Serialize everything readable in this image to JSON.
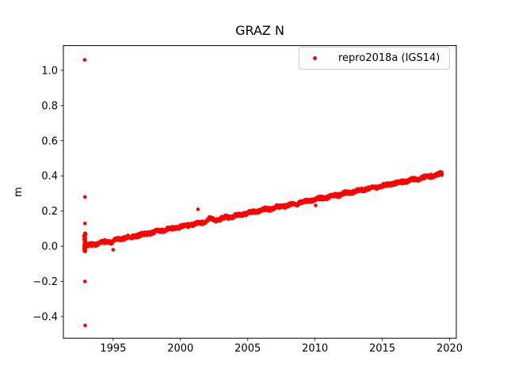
{
  "figure": {
    "background": "#ffffff"
  },
  "chart_data": {
    "type": "scatter",
    "title": "GRAZ N",
    "xlabel": "",
    "ylabel": "m",
    "grid": false,
    "legend": {
      "position": "upper right",
      "entries": [
        {
          "label": "repro2018a (IGS14)",
          "color": "#ff0000",
          "marker": "dot"
        }
      ]
    },
    "axes": {
      "xlim": [
        1991.3,
        2020.5
      ],
      "ylim": [
        -0.523,
        1.141
      ],
      "xticks": {
        "values": [
          1995,
          2000,
          2005,
          2010,
          2015,
          2020
        ],
        "labels": [
          "1995",
          "2000",
          "2005",
          "2010",
          "2015",
          "2020"
        ]
      },
      "yticks": {
        "values": [
          1.0,
          0.8,
          0.6,
          0.4,
          0.2,
          0.0,
          -0.2,
          -0.4
        ],
        "labels": [
          "1.0",
          "0.8",
          "0.6",
          "0.4",
          "0.2",
          "0.0",
          "−0.2",
          "−0.4"
        ]
      }
    },
    "series": [
      {
        "name": "repro2018a (IGS14)",
        "color": "#ff0000",
        "marker": "dot",
        "marker_radius_px": 2.3,
        "description": "dense daily time series rising linearly ~15.5 mm/yr",
        "trend": {
          "x_start": 1992.85,
          "x_end": 2019.45,
          "y_start": 0.0,
          "slope_per_year": 0.0155,
          "noise_amplitude": 0.007,
          "annual_amplitude": 0.0035,
          "points_per_year": 80
        },
        "anchor_points": [
          [
            1993,
            0.01
          ],
          [
            1995,
            0.035
          ],
          [
            2000,
            0.115
          ],
          [
            2005,
            0.19
          ],
          [
            2010,
            0.265
          ],
          [
            2015,
            0.34
          ],
          [
            2019.5,
            0.41
          ]
        ],
        "startup_cluster": {
          "x_center": 1992.91,
          "x_spread": 0.07,
          "y_min": -0.035,
          "y_max": 0.075,
          "n_points": 48
        },
        "bumps": [
          [
            1994.9,
            -0.012,
            0.1
          ],
          [
            1996.3,
            -0.01,
            0.12
          ],
          [
            2002.2,
            0.012,
            0.18
          ],
          [
            2008.6,
            -0.008,
            0.1
          ]
        ],
        "outliers": [
          [
            1992.88,
            1.06
          ],
          [
            1992.9,
            0.28
          ],
          [
            1992.9,
            0.13
          ],
          [
            1992.9,
            -0.2
          ],
          [
            1992.92,
            -0.45
          ],
          [
            1995.0,
            -0.02
          ],
          [
            2001.3,
            0.21
          ],
          [
            2010.05,
            0.232
          ]
        ]
      }
    ]
  }
}
